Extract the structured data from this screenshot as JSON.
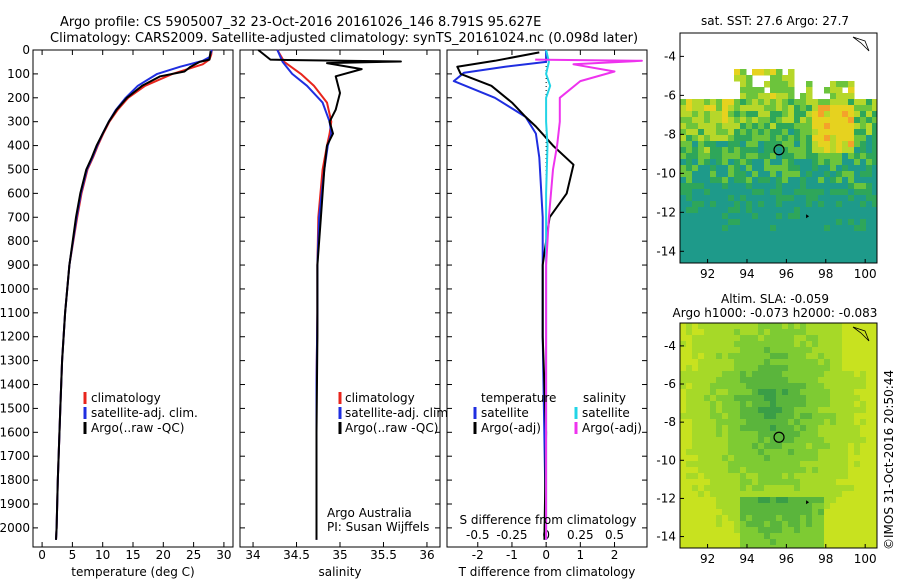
{
  "header": {
    "line1": "Argo profile: CS 5905007_32 23-Oct-2016 20161026_146 8.791S 95.627E",
    "line2": "Climatology: CARS2009. Satellite-adjusted climatology: synTS_20161024.nc (0.098d later)"
  },
  "colors": {
    "climatology": "#e8251c",
    "satellite_adj": "#1f2ee0",
    "argo": "#000000",
    "satellite": "#22d4e6",
    "argo_adj_salinity": "#ee33ee"
  },
  "credit": {
    "owner": "Argo Australia",
    "pi": "PI: Susan Wijffels",
    "stamp": "©IMOS 31-Oct-2016 20:50:44"
  },
  "chart_data": [
    {
      "type": "line",
      "name": "temperature",
      "xlabel": "temperature (deg C)",
      "ylabel": "",
      "xlim": [
        -1.5,
        31.5
      ],
      "ylim": [
        2080,
        0
      ],
      "xticks": [
        0,
        5,
        10,
        15,
        20,
        25,
        30
      ],
      "yticks": [
        0,
        100,
        200,
        300,
        400,
        500,
        600,
        700,
        800,
        900,
        1000,
        1100,
        1200,
        1300,
        1400,
        1500,
        1600,
        1700,
        1800,
        1900,
        2000
      ],
      "legend": [
        "climatology",
        "satellite-adj. clim.",
        "Argo(..raw -QC)"
      ],
      "legend_position": "lower-middle",
      "series": [
        {
          "name": "climatology",
          "color": "#e8251c",
          "x": [
            28.0,
            27.9,
            27.6,
            26.5,
            21.5,
            17.0,
            14.2,
            12.5,
            11.1,
            10.1,
            9.2,
            8.4,
            7.5,
            6.5,
            5.8,
            4.5,
            3.8,
            3.3,
            3.0,
            2.6,
            2.4,
            2.3
          ],
          "y": [
            0,
            20,
            40,
            60,
            100,
            150,
            200,
            250,
            300,
            350,
            400,
            450,
            500,
            600,
            700,
            900,
            1100,
            1300,
            1500,
            1800,
            2000,
            2050
          ]
        },
        {
          "name": "satellite-adj. clim.",
          "color": "#1f2ee0",
          "x": [
            28.0,
            27.6,
            26.5,
            22.8,
            19.0,
            15.8,
            13.8,
            12.2,
            11.0,
            10.0,
            9.1,
            8.3,
            7.4,
            6.4,
            5.7,
            4.5,
            3.8,
            3.3,
            3.0,
            2.6,
            2.4,
            2.3
          ],
          "y": [
            0,
            30,
            45,
            70,
            100,
            150,
            200,
            250,
            300,
            350,
            400,
            450,
            500,
            600,
            700,
            900,
            1100,
            1300,
            1500,
            1800,
            2000,
            2050
          ]
        },
        {
          "name": "Argo(..raw -QC)",
          "color": "#000000",
          "x": [
            27.8,
            27.6,
            26.0,
            24.5,
            23.5,
            19.5,
            16.5,
            14.0,
            12.3,
            11.0,
            10.0,
            9.0,
            8.2,
            7.3,
            6.3,
            5.6,
            4.5,
            3.8,
            3.3,
            3.0,
            2.6,
            2.4,
            2.3
          ],
          "y": [
            5,
            40,
            50,
            70,
            90,
            110,
            150,
            200,
            250,
            300,
            350,
            400,
            450,
            500,
            600,
            700,
            900,
            1100,
            1300,
            1500,
            1800,
            2000,
            2050
          ]
        }
      ]
    },
    {
      "type": "line",
      "name": "salinity",
      "xlabel": "salinity",
      "xlim": [
        33.85,
        36.15
      ],
      "ylim": [
        2080,
        0
      ],
      "xticks": [
        34,
        34.5,
        35,
        35.5,
        36
      ],
      "legend": [
        "climatology",
        "satellite-adj. clim.",
        "Argo(..raw -QC)"
      ],
      "legend_position": "lower-right",
      "series": [
        {
          "name": "climatology",
          "color": "#e8251c",
          "x": [
            34.28,
            34.36,
            34.55,
            34.7,
            34.85,
            34.9,
            34.88,
            34.85,
            34.8,
            34.75,
            34.74,
            34.74,
            34.73,
            34.73,
            34.73
          ],
          "y": [
            0,
            50,
            100,
            150,
            220,
            300,
            350,
            400,
            500,
            700,
            900,
            1100,
            1400,
            1800,
            2050
          ]
        },
        {
          "name": "satellite-adj. clim.",
          "color": "#1f2ee0",
          "x": [
            34.28,
            34.34,
            34.45,
            34.62,
            34.8,
            34.88,
            34.9,
            34.86,
            34.82,
            34.76,
            34.74,
            34.74,
            34.73,
            34.73,
            34.73
          ],
          "y": [
            0,
            50,
            100,
            150,
            220,
            300,
            350,
            400,
            500,
            700,
            900,
            1100,
            1400,
            1800,
            2050
          ]
        },
        {
          "name": "Argo(..raw -QC)",
          "color": "#000000",
          "x": [
            34.06,
            34.2,
            34.4,
            35.7,
            34.85,
            35.25,
            34.95,
            35.0,
            34.95,
            34.88,
            34.92,
            34.85,
            34.82,
            34.78,
            34.74,
            34.74,
            34.73,
            34.73
          ],
          "y": [
            0,
            40,
            42,
            48,
            55,
            80,
            110,
            180,
            250,
            300,
            350,
            400,
            500,
            700,
            900,
            1200,
            1600,
            2050
          ]
        }
      ]
    },
    {
      "type": "line",
      "name": "differences",
      "xlabel_bottom": "T difference from climatology",
      "xlabel_top": "S difference from climatology",
      "xlim_bottom": [
        -2.9,
        2.95
      ],
      "xticks_bottom": [
        -2,
        -1,
        0,
        1,
        2
      ],
      "xtick_labels_top": [
        "-0.5",
        "-0.25",
        "0",
        "0.25",
        "0.5"
      ],
      "xticks_top": [
        -0.5,
        -0.25,
        0,
        0.25,
        0.5
      ],
      "xlim_top": [
        -0.725,
        0.7375
      ],
      "ylim": [
        2080,
        0
      ],
      "legend_left_title": "temperature",
      "legend_right_title": "salinity",
      "legend_left": [
        "satellite",
        "Argo(-adj)"
      ],
      "legend_right": [
        "satellite",
        "Argo(-adj)"
      ],
      "series": [
        {
          "name": "temperature satellite",
          "axis": "bottom",
          "color": "#1f2ee0",
          "x": [
            0,
            0,
            0,
            0.0,
            -1.2,
            -2.4,
            -2.7,
            -1.5,
            -0.6,
            -0.3,
            -0.2,
            -0.1,
            -0.1,
            0.0
          ],
          "y": [
            0,
            20,
            40,
            50,
            70,
            95,
            130,
            200,
            280,
            350,
            450,
            700,
            1200,
            2050
          ]
        },
        {
          "name": "temperature Argo(-adj)",
          "axis": "bottom",
          "color": "#000000",
          "x": [
            -0.2,
            -1.5,
            -2.6,
            -2.5,
            -1.6,
            -1.0,
            -0.6,
            -0.3,
            0.2,
            0.8,
            0.6,
            0.1,
            -0.1,
            -0.1,
            0.0,
            -0.05
          ],
          "y": [
            10,
            45,
            70,
            100,
            150,
            220,
            280,
            320,
            400,
            480,
            600,
            700,
            900,
            1200,
            1600,
            2050
          ]
        },
        {
          "name": "salinity satellite",
          "axis": "top",
          "color": "#22d4e6",
          "x": [
            0,
            0.02,
            0.0,
            0.03,
            0.0,
            0.0,
            0.01,
            0.0,
            0.0,
            0.0
          ],
          "y": [
            0,
            50,
            100,
            150,
            200,
            300,
            400,
            600,
            1000,
            2050
          ]
        },
        {
          "name": "salinity Argo(-adj)",
          "axis": "top",
          "color": "#ee33ee",
          "x": [
            -0.08,
            0.7,
            0.2,
            0.5,
            0.25,
            0.1,
            0.1,
            0.08,
            0.05,
            0.02,
            0.0,
            0.0,
            0.0
          ],
          "y": [
            40,
            45,
            60,
            90,
            130,
            200,
            300,
            400,
            500,
            700,
            900,
            1400,
            2050
          ]
        }
      ]
    },
    {
      "type": "heatmap",
      "name": "sst-map",
      "title": "sat. SST: 27.6  Argo: 27.7",
      "xlim": [
        90.6,
        100.6
      ],
      "ylim": [
        -14.6,
        -2.8
      ],
      "xticks": [
        92,
        94,
        96,
        98,
        100
      ],
      "yticks": [
        -4,
        -6,
        -8,
        -10,
        -12,
        -14
      ],
      "marker": {
        "lon": 95.627,
        "lat": -8.791
      },
      "track": [
        {
          "lon": 97.0,
          "lat": -12.2
        }
      ]
    },
    {
      "type": "heatmap",
      "name": "sla-map",
      "title": "Altim. SLA: -0.059",
      "subtitle": "Argo h1000: -0.073 h2000: -0.083",
      "xlim": [
        90.6,
        100.6
      ],
      "ylim": [
        -14.6,
        -2.8
      ],
      "xticks": [
        92,
        94,
        96,
        98,
        100
      ],
      "yticks": [
        -4,
        -6,
        -8,
        -10,
        -12,
        -14
      ],
      "marker": {
        "lon": 95.627,
        "lat": -8.791
      },
      "track": [
        {
          "lon": 97.0,
          "lat": -12.2
        }
      ]
    }
  ]
}
